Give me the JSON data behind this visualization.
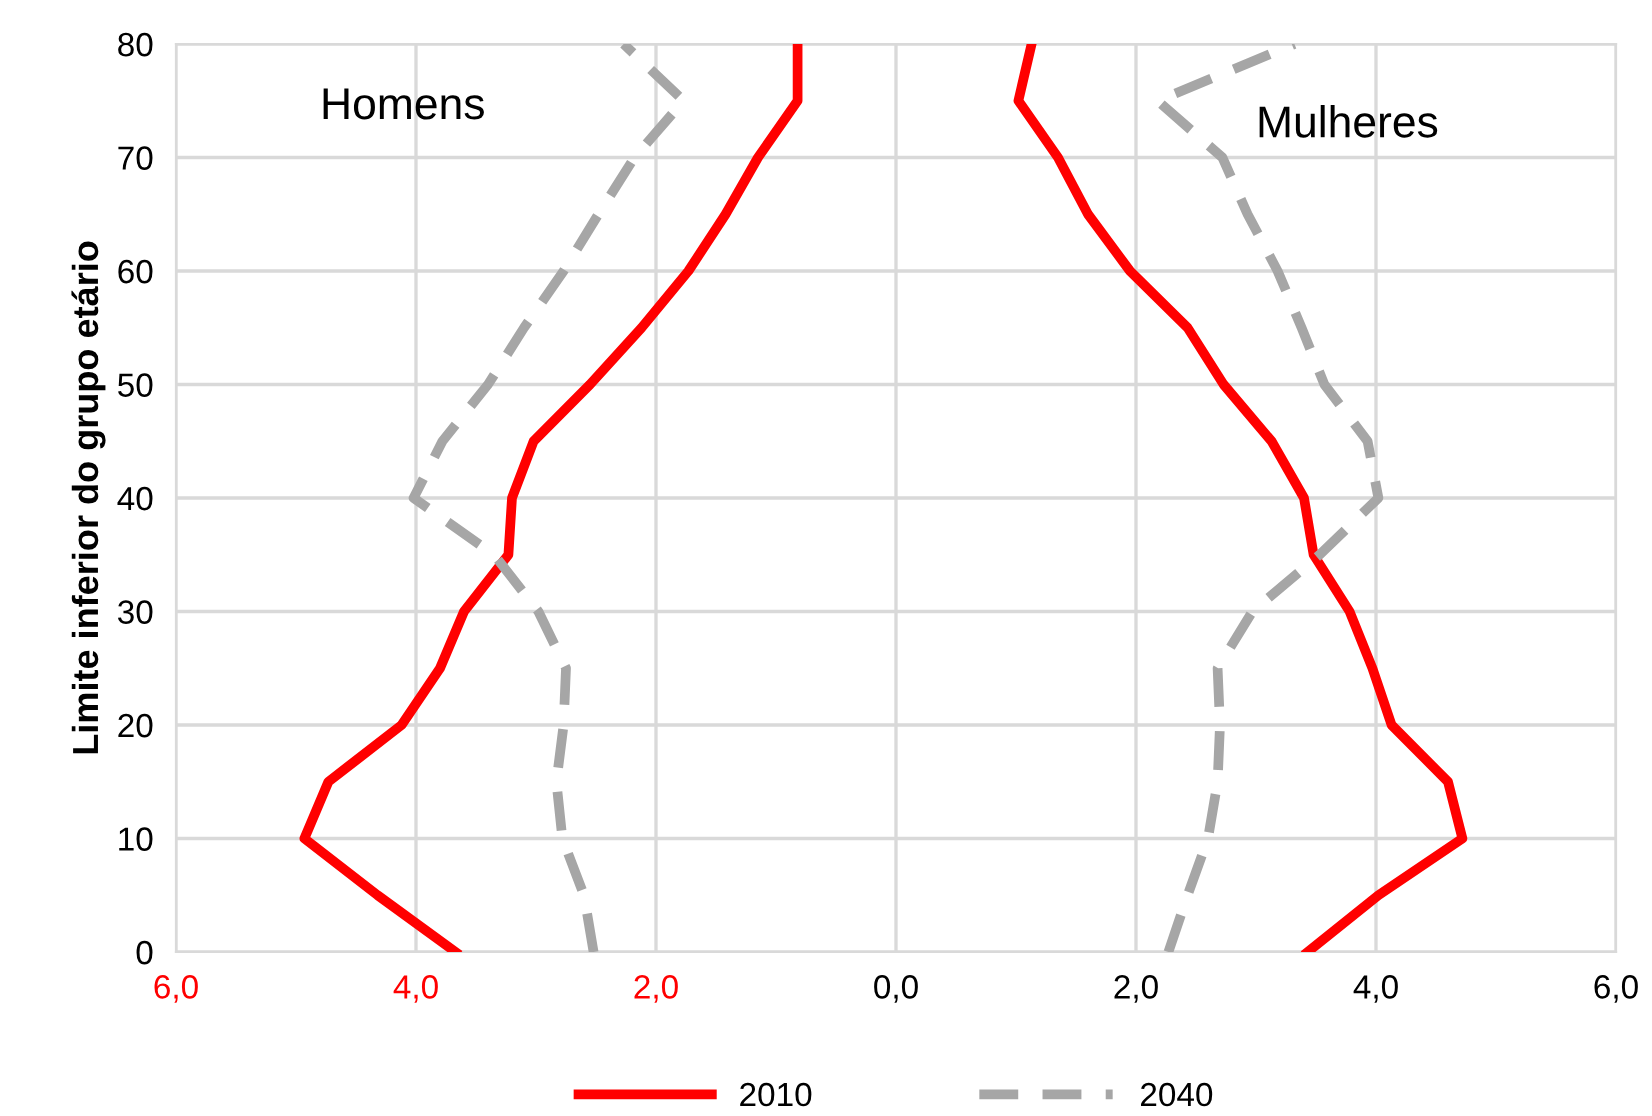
{
  "chart_data": {
    "type": "line",
    "ylabel": "Limite inferior do grupo etário",
    "annotations": [
      "Homens",
      "Mulheres"
    ],
    "xlim": [
      -6,
      6
    ],
    "xticks": [
      {
        "value": -6,
        "label": "6,0"
      },
      {
        "value": -4,
        "label": "4,0"
      },
      {
        "value": -2,
        "label": "2,0"
      },
      {
        "value": 0,
        "label": "0,0"
      },
      {
        "value": 2,
        "label": "2,0"
      },
      {
        "value": 4,
        "label": "4,0"
      },
      {
        "value": 6,
        "label": "6,0"
      }
    ],
    "ylim": [
      0,
      80
    ],
    "yticks": [
      0,
      10,
      20,
      30,
      40,
      50,
      60,
      70,
      80
    ],
    "grid": true,
    "legend": "bottom",
    "marker": "none",
    "series": [
      {
        "name": "2010",
        "color": "#ff0000",
        "line_style": "solid",
        "x": [
          -3.67,
          -4.32,
          -4.93,
          -4.73,
          -4.12,
          -3.8,
          -3.6,
          -3.23,
          -3.2,
          -3.02,
          -2.55,
          -2.12,
          -1.73,
          -1.42,
          -1.15,
          -0.82,
          -0.82
        ],
        "values": [
          0,
          5,
          10,
          15,
          20,
          25,
          30,
          35,
          40,
          45,
          50,
          55,
          60,
          65,
          70,
          75,
          80
        ]
      },
      {
        "color": "#ff0000",
        "line_style": "solid",
        "x": [
          3.43,
          4.02,
          4.72,
          4.6,
          4.13,
          3.97,
          3.78,
          3.48,
          3.4,
          3.13,
          2.73,
          2.43,
          1.95,
          1.6,
          1.35,
          1.02,
          1.13
        ],
        "values": [
          0,
          5,
          10,
          15,
          20,
          25,
          30,
          35,
          40,
          45,
          50,
          55,
          60,
          65,
          70,
          75,
          80
        ]
      },
      {
        "name": "2040",
        "color": "#a6a6a6",
        "line_style": "dashed",
        "x": [
          -2.52,
          -2.6,
          -2.78,
          -2.83,
          -2.77,
          -2.75,
          -2.98,
          -3.35,
          -4.02,
          -3.78,
          -3.4,
          -3.1,
          -2.77,
          -2.48,
          -2.18,
          -1.77,
          -2.27
        ],
        "values": [
          0,
          5,
          10,
          15,
          20,
          25,
          30,
          35,
          40,
          45,
          50,
          55,
          60,
          65,
          70,
          75,
          80
        ]
      },
      {
        "color": "#a6a6a6",
        "line_style": "dashed",
        "x": [
          2.27,
          2.43,
          2.6,
          2.68,
          2.7,
          2.68,
          2.97,
          3.53,
          4.02,
          3.93,
          3.57,
          3.38,
          3.18,
          2.93,
          2.72,
          2.18,
          3.32
        ],
        "values": [
          0,
          5,
          10,
          15,
          20,
          25,
          30,
          35,
          40,
          45,
          50,
          55,
          60,
          65,
          70,
          75,
          80
        ]
      }
    ]
  }
}
